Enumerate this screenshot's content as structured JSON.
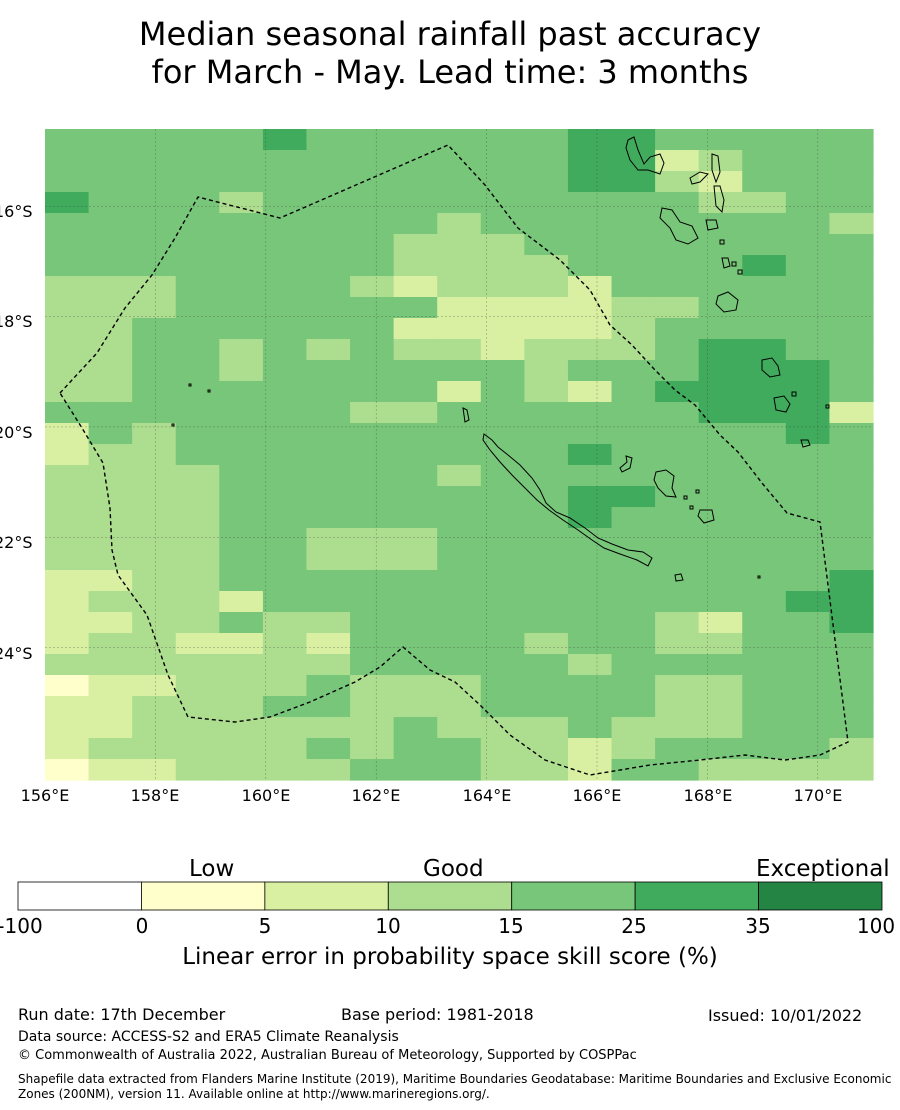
{
  "title": {
    "line1": "Median seasonal rainfall past accuracy",
    "line2": "for March - May. Lead time: 3 months"
  },
  "map": {
    "lat_labels": [
      "16°S",
      "18°S",
      "20°S",
      "22°S",
      "24°S"
    ],
    "lon_labels": [
      "156°E",
      "158°E",
      "160°E",
      "162°E",
      "164°E",
      "166°E",
      "168°E",
      "170°E"
    ],
    "lon_range": [
      156,
      171
    ],
    "lat_range": [
      -14.6,
      -26.4
    ],
    "eez_boundary": "dashed",
    "land_outline_color": "#000000",
    "skill_grid": [
      "3333343333334433333",
      "3333333333334412333",
      "3333333333334421333",
      "4333233333333332233",
      "3333333332333333332",
      "3333333322233333333",
      "3333333322223333433",
      "2223333212221333333",
      "2223333331111223333",
      "2233333311111233333",
      "2233232322122234433",
      "2233233333323334443",
      "2233333331321344443",
      "3333333223333334441",
      "1323333333333333343",
      "1223333333334333333",
      "2222333332333333333",
      "2222333333334433333",
      "2222333333334333333",
      "2222332223333333333",
      "2222332223333333333",
      "1122333333333333334",
      "1222133333333333344",
      "1122322333333321334",
      "1221121333323322333",
      "2222222333332333333",
      "0112223222333322333",
      "1122233222333322333",
      "1122222232223222333",
      "1222223233221233332",
      "0112222333221332222"
    ]
  },
  "colorbar": {
    "category_labels": [
      "Low",
      "Good",
      "Exceptional"
    ],
    "bins": [
      {
        "from": "-100",
        "to": "0",
        "color": "#ffffff"
      },
      {
        "from": "0",
        "to": "5",
        "color": "#ffffcc"
      },
      {
        "from": "5",
        "to": "10",
        "color": "#d9f0a3"
      },
      {
        "from": "10",
        "to": "15",
        "color": "#addd8e"
      },
      {
        "from": "15",
        "to": "25",
        "color": "#78c679"
      },
      {
        "from": "25",
        "to": "35",
        "color": "#41ab5d"
      },
      {
        "from": "35",
        "to": "100",
        "color": "#238443"
      }
    ],
    "ticks": [
      "-100",
      "0",
      "5",
      "10",
      "15",
      "25",
      "35",
      "100"
    ],
    "title": "Linear error in probability space skill score (%)"
  },
  "footer": {
    "run_date": "Run date: 17th December",
    "base_period": "Base period: 1981-2018",
    "issued": "Issued: 10/01/2022",
    "data_source": "Data source: ACCESS-S2 and ERA5 Climate Reanalysis",
    "copyright": "© Commonwealth of Australia 2022, Australian Bureau of Meteorology, Supported by COSPPac",
    "shapefile": "Shapefile data extracted from Flanders Marine Institute (2019), Maritime Boundaries Geodatabase: Maritime Boundaries and Exclusive Economic Zones (200NM), version 11. Available online at http://www.marineregions.org/."
  }
}
